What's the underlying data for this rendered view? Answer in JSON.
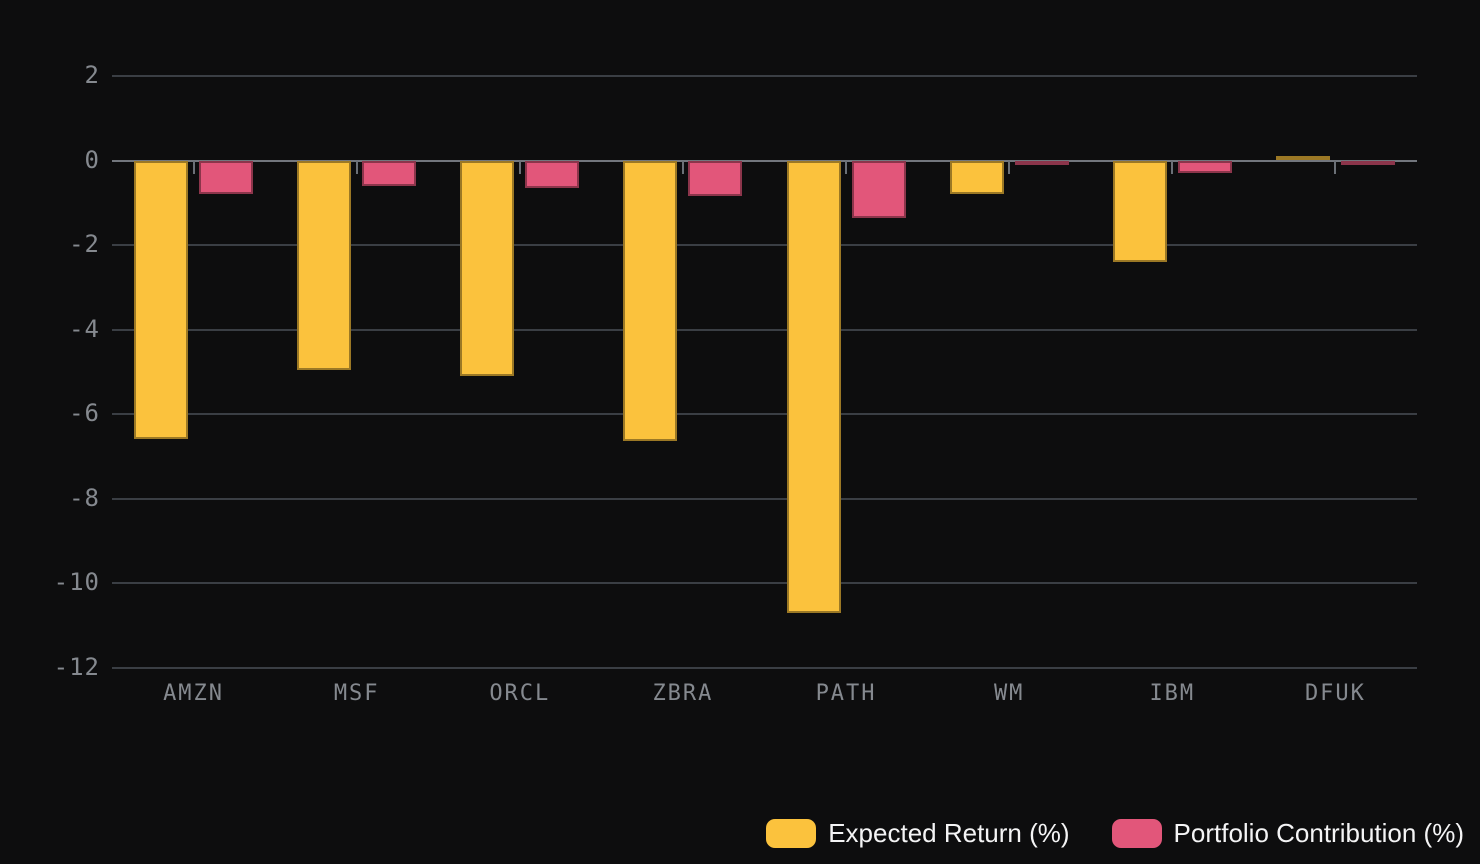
{
  "colors": {
    "background": "#0d0d0e",
    "gridline": "#3a3e44",
    "zero_line": "#72767d",
    "axis_tick": "#6b7077",
    "tick_label": "#85898f",
    "legend_text": "#f4f4f5",
    "expected_return": "#fbc23d",
    "portfolio_contribution": "#e2567a"
  },
  "chart_data": {
    "type": "bar",
    "title": "",
    "categories": [
      "AMZN",
      "MSF",
      "ORCL",
      "ZBRA",
      "PATH",
      "WM",
      "IBM",
      "DFUK"
    ],
    "series": [
      {
        "name": "Expected Return (%)",
        "color": "#fbc23d",
        "values": [
          -6.6,
          -4.95,
          -5.1,
          -6.65,
          -10.7,
          -0.8,
          -2.4,
          0.1
        ]
      },
      {
        "name": "Portfolio Contribution (%)",
        "color": "#e2567a",
        "values": [
          -0.8,
          -0.6,
          -0.65,
          -0.85,
          -1.35,
          -0.1,
          -0.3,
          -0.05
        ]
      }
    ],
    "y_axis": {
      "ticks": [
        2,
        0,
        -2,
        -4,
        -6,
        -8,
        -10,
        -12
      ],
      "min": -12,
      "max": 2
    },
    "x_axis": {
      "tick_marks_at": "group-centers",
      "baseline": 0
    },
    "grid": true,
    "legend_position": "bottom-right"
  }
}
